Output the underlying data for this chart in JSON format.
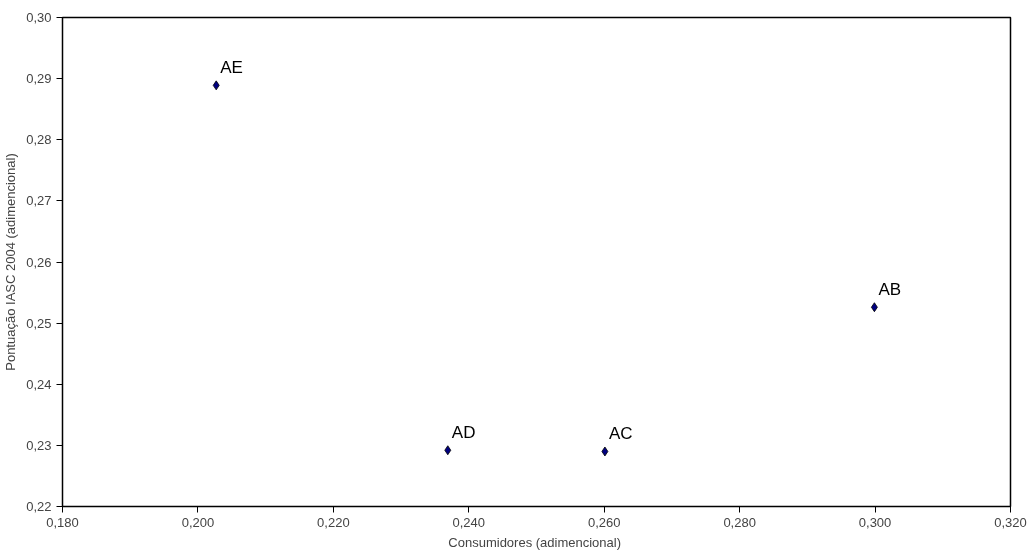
{
  "chart_data": {
    "type": "scatter",
    "xlabel": "Consumidores  (adimencional)",
    "ylabel": "Pontuação IASC 2004 (adimencional)",
    "x": [
      0.2027,
      0.2999,
      0.2601,
      0.2369
    ],
    "series": [
      {
        "color": "#000080",
        "values": [
          0.2889,
          0.2526,
          0.229,
          0.2292
        ]
      }
    ],
    "marker": "diamond",
    "grid": false,
    "xlim": [
      0.18,
      0.32
    ],
    "xticks": [
      {
        "value": 0.18,
        "label": "0,180"
      },
      {
        "value": 0.2,
        "label": "0,200"
      },
      {
        "value": 0.22,
        "label": "0,220"
      },
      {
        "value": 0.24,
        "label": "0,240"
      },
      {
        "value": 0.26,
        "label": "0,260"
      },
      {
        "value": 0.28,
        "label": "0,280"
      },
      {
        "value": 0.3,
        "label": "0,300"
      },
      {
        "value": 0.32,
        "label": "0,320"
      }
    ],
    "ylim": [
      0.22,
      0.3
    ],
    "yticks": [
      {
        "value": 0.22,
        "label": "0,22"
      },
      {
        "value": 0.23,
        "label": "0,23"
      },
      {
        "value": 0.24,
        "label": "0,24"
      },
      {
        "value": 0.25,
        "label": "0,25"
      },
      {
        "value": 0.26,
        "label": "0,26"
      },
      {
        "value": 0.27,
        "label": "0,27"
      },
      {
        "value": 0.28,
        "label": "0,28"
      },
      {
        "value": 0.29,
        "label": "0,29"
      },
      {
        "value": 0.3,
        "label": "0,30"
      }
    ],
    "annotations": [
      {
        "text": "AE",
        "x": 0.2027,
        "y": 0.2889
      },
      {
        "text": "AB",
        "x": 0.2999,
        "y": 0.2526
      },
      {
        "text": "AC",
        "x": 0.2601,
        "y": 0.229
      },
      {
        "text": "AD",
        "x": 0.2369,
        "y": 0.2292
      }
    ]
  }
}
